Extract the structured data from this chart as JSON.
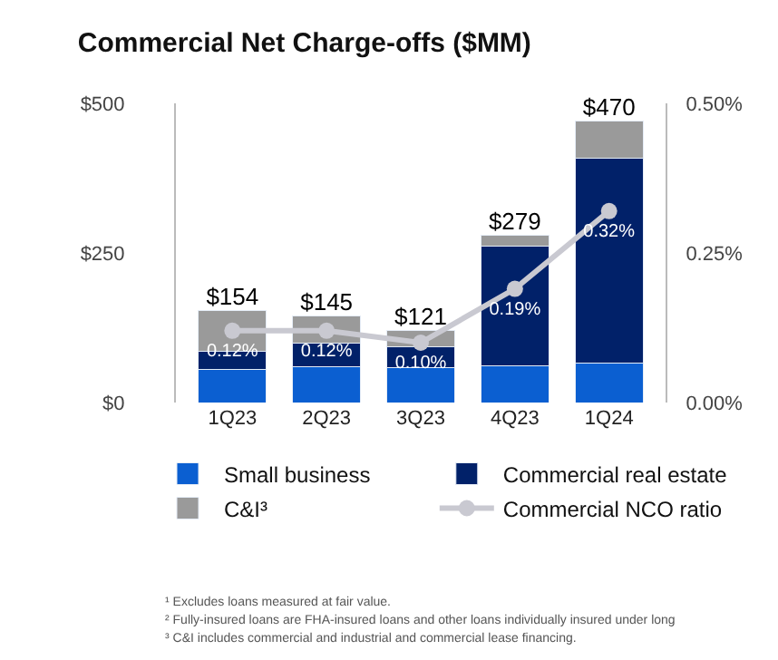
{
  "chart_data": {
    "type": "bar",
    "title": "Commercial Net Charge-offs ($MM)",
    "categories": [
      "1Q23",
      "2Q23",
      "3Q23",
      "4Q23",
      "1Q24"
    ],
    "stacked": true,
    "series": [
      {
        "name": "Small business",
        "color": "#0b5fd1",
        "values": [
          55,
          60,
          58,
          62,
          66
        ]
      },
      {
        "name": "Commercial real estate",
        "color": "#012169",
        "values": [
          30,
          40,
          35,
          200,
          343
        ]
      },
      {
        "name": "C&I³",
        "color": "#9a9a9a",
        "values": [
          69,
          45,
          28,
          17,
          61
        ]
      },
      {
        "name": "Commercial NCO ratio",
        "type": "line",
        "axis": "y2",
        "color": "#c9c9d1",
        "marker": "circle",
        "values": [
          0.12,
          0.12,
          0.1,
          0.19,
          0.32
        ],
        "value_labels": [
          "0.12%",
          "0.12%",
          "0.10%",
          "0.19%",
          "0.32%"
        ]
      }
    ],
    "totals": [
      "$154",
      "$145",
      "$121",
      "$279",
      "$470"
    ],
    "ylim": [
      0,
      500
    ],
    "yticks": [
      {
        "value": 0,
        "label": "$0"
      },
      {
        "value": 250,
        "label": "$250"
      },
      {
        "value": 500,
        "label": "$500"
      }
    ],
    "y2lim": [
      0,
      0.5
    ],
    "y2ticks": [
      {
        "value": 0,
        "label": "0.00%"
      },
      {
        "value": 0.25,
        "label": "0.25%"
      },
      {
        "value": 0.5,
        "label": "0.50%"
      }
    ],
    "legend": "bottom",
    "annotations": [
      "¹ Excludes loans measured at fair value.",
      "² Fully-insured loans are FHA-insured loans and other loans individually insured under long",
      "³ C&I includes commercial and industrial and commercial lease financing."
    ]
  }
}
